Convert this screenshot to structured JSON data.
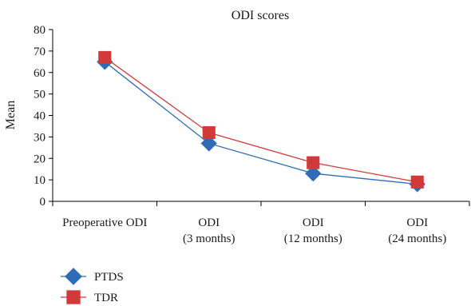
{
  "chart_data": {
    "type": "line",
    "title": "ODI scores",
    "ylabel": "Mean",
    "xlabel": "",
    "ylim": [
      0,
      80
    ],
    "yticks": [
      0,
      10,
      20,
      30,
      40,
      50,
      60,
      70,
      80
    ],
    "grid": false,
    "legend_position": "bottom-left",
    "categories": [
      [
        "Preoperative ODI"
      ],
      [
        "ODI",
        "(3 months)"
      ],
      [
        "ODI",
        "(12 months)"
      ],
      [
        "ODI",
        "(24 months)"
      ]
    ],
    "series": [
      {
        "name": "PTDS",
        "values": [
          65,
          27,
          13,
          8
        ],
        "color": "#2e6db5",
        "marker": "diamond"
      },
      {
        "name": "TDR",
        "values": [
          67,
          32,
          18,
          9
        ],
        "color": "#d23a3a",
        "marker": "square"
      }
    ]
  }
}
